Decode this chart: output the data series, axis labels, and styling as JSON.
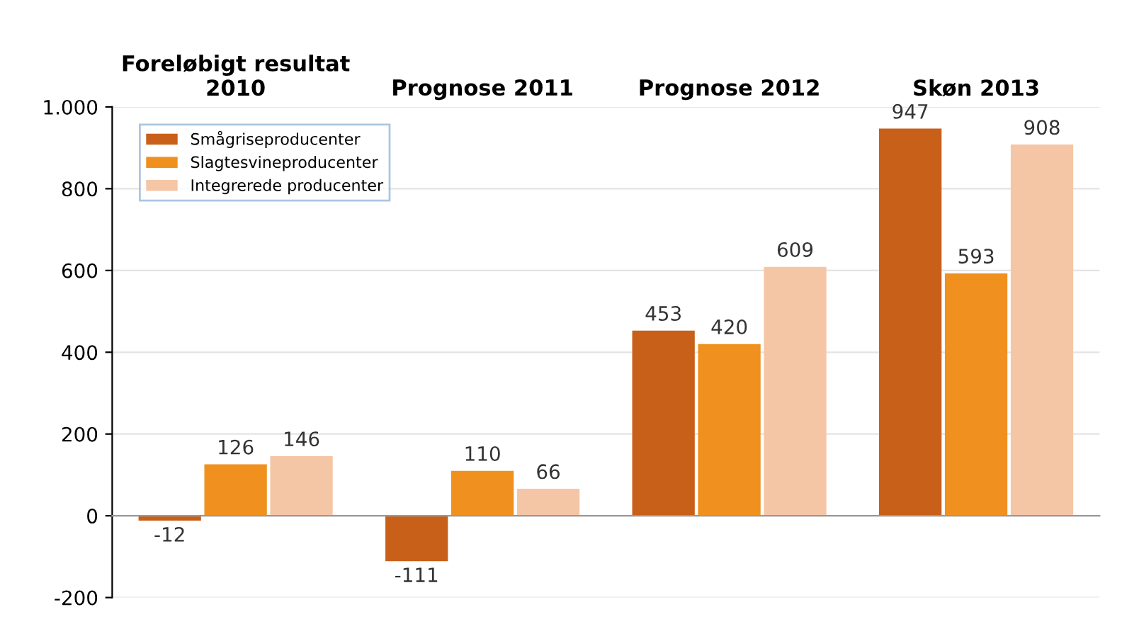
{
  "chart_data": {
    "type": "bar",
    "categories": [
      "Foreløbigt resultat\n2010",
      "Prognose 2011",
      "Prognose 2012",
      "Skøn 2013"
    ],
    "series": [
      {
        "name": "Smågriseproducenter",
        "color": "#c8601a",
        "values": [
          -12,
          -111,
          453,
          947
        ]
      },
      {
        "name": "Slagtesvineproducenter",
        "color": "#f0901f",
        "values": [
          126,
          110,
          420,
          593
        ]
      },
      {
        "name": "Integrerede producenter",
        "color": "#f5c6a5",
        "values": [
          146,
          66,
          609,
          908
        ]
      }
    ],
    "ylim": [
      -200,
      1000
    ],
    "yticks": [
      -200,
      0,
      200,
      400,
      600,
      800,
      {
        "value": 1000,
        "label": "1.000"
      }
    ],
    "data_labels": true,
    "grid": "y",
    "legend": "top left"
  }
}
